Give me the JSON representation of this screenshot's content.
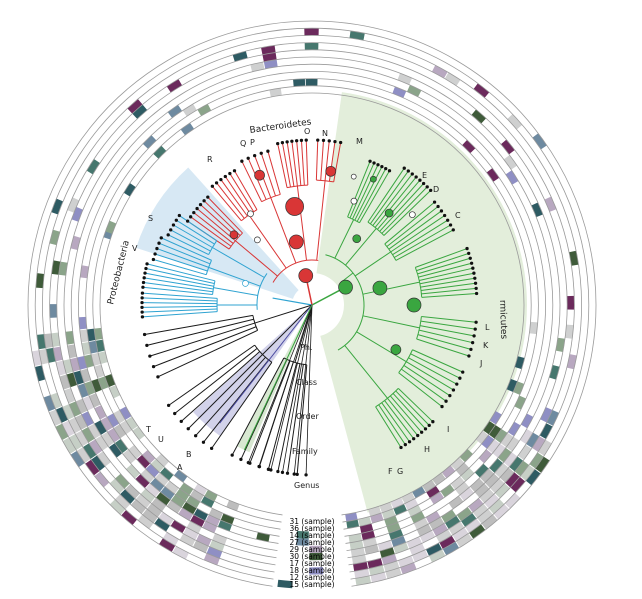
{
  "phylum_labels": {
    "bacteroidetes": "Bacteroidetes",
    "proteobacteria": "Proteobacteria",
    "firmicutes": "rmicutes"
  },
  "rank_labels": [
    "Ph.",
    "Class",
    "Order",
    "Family",
    "Genus"
  ],
  "clade_letters": [
    "A",
    "B",
    "C",
    "D",
    "E",
    "F",
    "G",
    "H",
    "I",
    "J",
    "K",
    "L",
    "M",
    "N",
    "O",
    "P",
    "Q",
    "R",
    "S",
    "T",
    "U",
    "V"
  ],
  "ring_labels": [
    {
      "text": "31 (sample)",
      "color": "#7a2a5a"
    },
    {
      "text": "36 (sample)",
      "color": "#9c7a9a"
    },
    {
      "text": "14 (sample)",
      "color": "#5a3a6a"
    },
    {
      "text": "27 (sample)",
      "color": "#3a3a3a"
    },
    {
      "text": "29 (sample)",
      "color": "#4a5a3a"
    },
    {
      "text": "30 (sample)",
      "color": "#2a4a4a"
    },
    {
      "text": "17 (sample)",
      "color": "#3a7a8a"
    },
    {
      "text": "18 (sample)",
      "color": "#8a9aca"
    },
    {
      "text": "12 (sample)",
      "color": "#5a6a5a"
    },
    {
      "text": "15 (sample)",
      "color": "#3a3a3a"
    }
  ],
  "colors": {
    "bacteroidetes": "#d93636",
    "proteobacteria": "#2fa3d1",
    "firmicutes": "#3aa640",
    "firmicutes_bg": "#e3eedb",
    "proteobacteria_bg": "#d7e8f4",
    "other_bg": "#d2d2ea",
    "heat_palette": [
      "#6b2a5c",
      "#8f8fc4",
      "#2e5b63",
      "#46776e",
      "#3f5b3a",
      "#b8a8c0",
      "#cfd0d0",
      "#8ba48a",
      "#6e8aa0"
    ]
  }
}
